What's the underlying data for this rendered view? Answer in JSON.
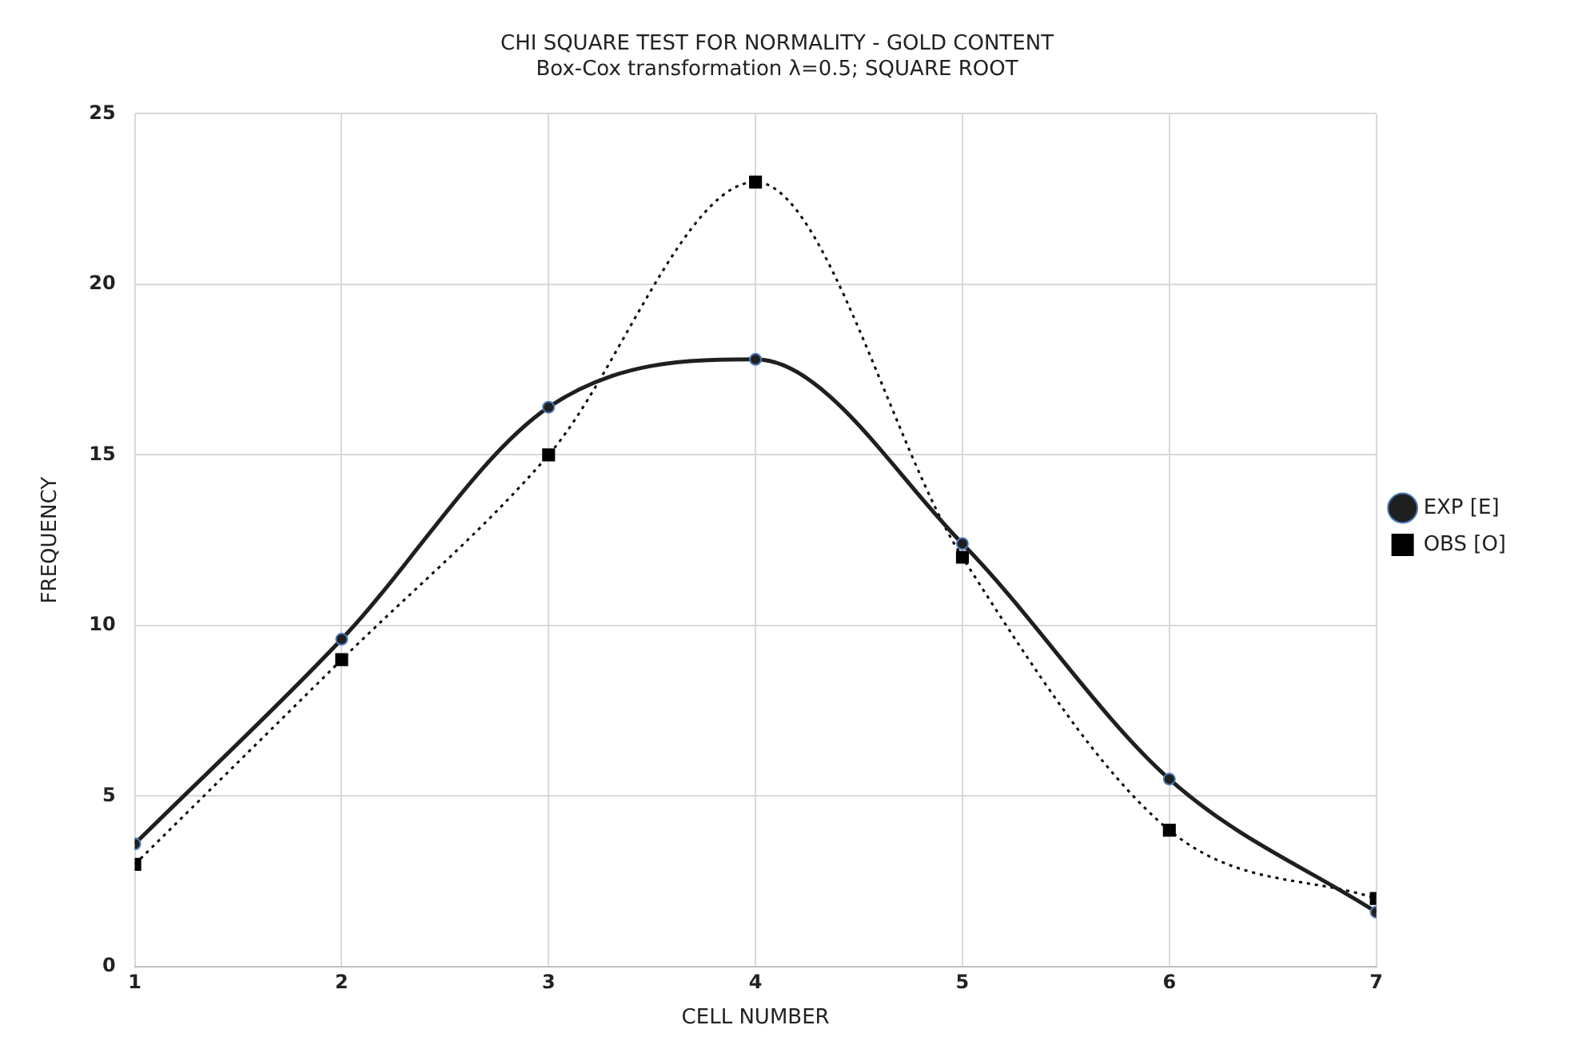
{
  "chart_data": {
    "type": "line",
    "title": "CHI SQUARE TEST FOR NORMALITY - GOLD CONTENT",
    "subtitle": "Box-Cox transformation λ=0.5; SQUARE ROOT",
    "xlabel": "CELL NUMBER",
    "ylabel": "FREQUENCY",
    "x": [
      1,
      2,
      3,
      4,
      5,
      6,
      7
    ],
    "xlim": [
      1,
      7
    ],
    "xticks": [
      1,
      2,
      3,
      4,
      5,
      6,
      7
    ],
    "ylim": [
      0,
      25
    ],
    "yticks": [
      0,
      5,
      10,
      15,
      20,
      25
    ],
    "grid": true,
    "legend": "right",
    "series": [
      {
        "name": "EXP [E]",
        "color": "#1f1f1f",
        "marker": "circle",
        "line_style": "solid",
        "values": [
          3.6,
          9.6,
          16.4,
          17.8,
          12.4,
          5.5,
          1.6
        ]
      },
      {
        "name": "OBS [O]",
        "color": "#000000",
        "marker": "square",
        "line_style": "dotted",
        "values": [
          3,
          9,
          15,
          23,
          12,
          4,
          2
        ]
      }
    ]
  }
}
